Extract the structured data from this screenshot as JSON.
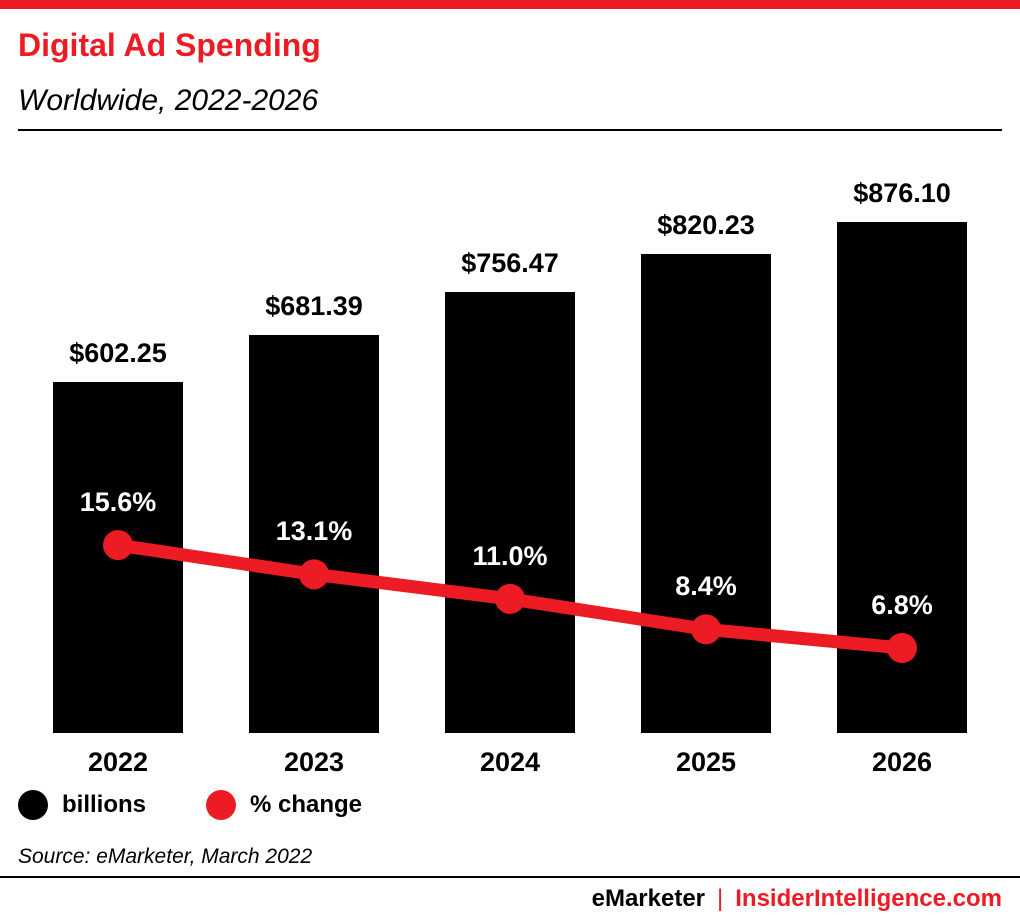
{
  "page": {
    "title": "Digital Ad Spending",
    "subtitle": "Worldwide, 2022-2026",
    "source": "Source: eMarketer, March 2022",
    "footer": {
      "brand_left": "eMarketer",
      "separator": "|",
      "brand_right": "InsiderIntelligence.com"
    },
    "colors": {
      "accent_red": "#ed1b24",
      "bar_black": "#000000",
      "background": "#ffffff"
    }
  },
  "chart_data": {
    "type": "bar",
    "title": "Digital Ad Spending",
    "subtitle": "Worldwide, 2022-2026",
    "categories": [
      "2022",
      "2023",
      "2024",
      "2025",
      "2026"
    ],
    "series": [
      {
        "name": "billions",
        "type": "bar",
        "color": "#000000",
        "values": [
          602.25,
          681.39,
          756.47,
          820.23,
          876.1
        ],
        "labels": [
          "$602.25",
          "$681.39",
          "$756.47",
          "$820.23",
          "$876.10"
        ]
      },
      {
        "name": "% change",
        "type": "line",
        "color": "#ed1b24",
        "values": [
          15.6,
          13.1,
          11.0,
          8.4,
          6.8
        ],
        "labels": [
          "15.6%",
          "13.1%",
          "11.0%",
          "8.4%",
          "6.8%"
        ]
      }
    ],
    "legend": [
      {
        "label": "billions",
        "color": "#000000"
      },
      {
        "label": "% change",
        "color": "#ed1b24"
      }
    ],
    "legend_position": "bottom-left",
    "grid": false,
    "xlabel": "",
    "ylabel": "",
    "ylim_bars": [
      0,
      980
    ],
    "ylim_pct": [
      0,
      20
    ]
  }
}
